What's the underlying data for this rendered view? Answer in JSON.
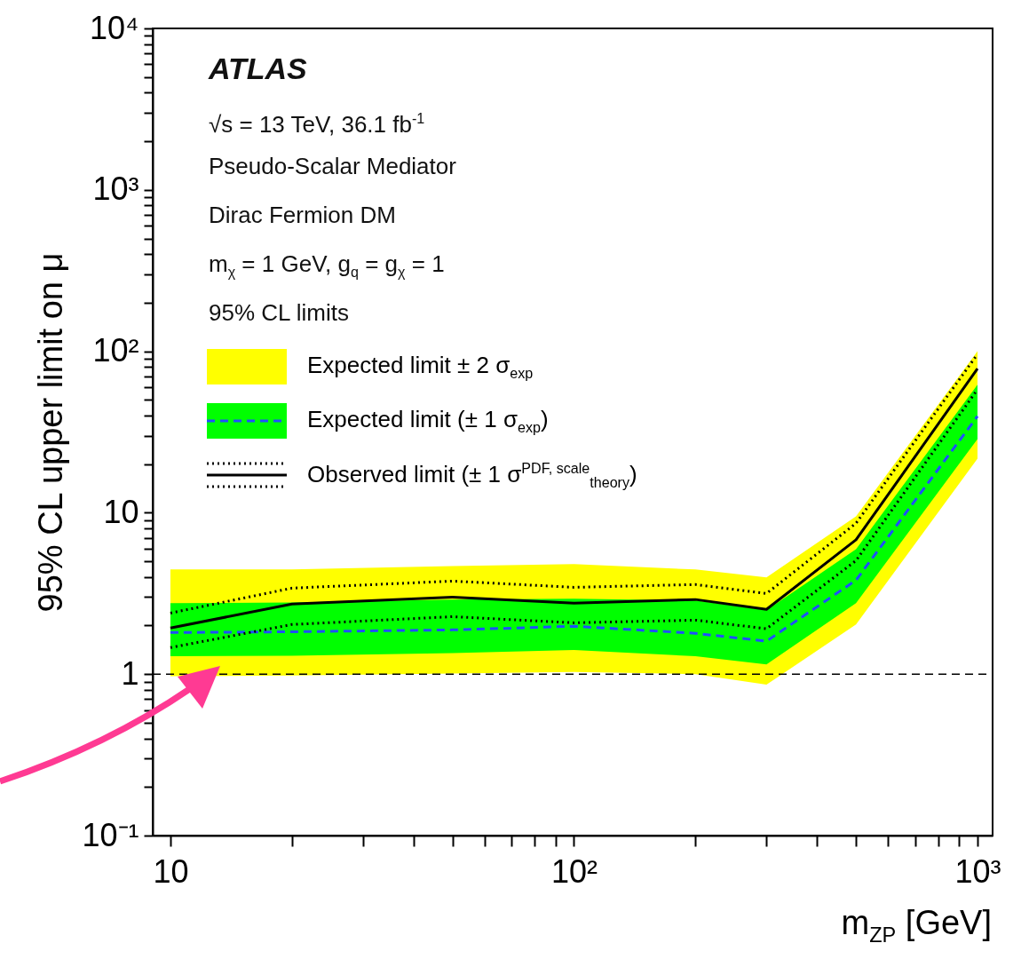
{
  "chart_data": {
    "type": "line",
    "xlabel": "m$_{Z}$$_{P}$ [GeV]",
    "ylabel": "95% CL upper limit on μ",
    "log": "xy",
    "grid": false,
    "legend": "top left",
    "marker": "none",
    "xlim": [
      9.04,
      1090
    ],
    "ylim": [
      0.1,
      10000
    ],
    "xticks": [
      10,
      {
        "value": 20,
        "label": null
      },
      {
        "value": 30,
        "label": null
      },
      {
        "value": 40,
        "label": null
      },
      {
        "value": 50,
        "label": null
      },
      {
        "value": 60,
        "label": null
      },
      {
        "value": 70,
        "label": null
      },
      {
        "value": 80,
        "label": null
      },
      {
        "value": 90,
        "label": null
      },
      {
        "value": 100,
        "label": "10²"
      },
      {
        "value": 200,
        "label": null
      },
      {
        "value": 300,
        "label": null
      },
      {
        "value": 400,
        "label": null
      },
      {
        "value": 500,
        "label": null
      },
      {
        "value": 600,
        "label": null
      },
      {
        "value": 700,
        "label": null
      },
      {
        "value": 800,
        "label": null
      },
      {
        "value": 900,
        "label": null
      },
      {
        "value": 1000,
        "label": "10³"
      }
    ],
    "yticks": [
      {
        "value": 0.1,
        "label": "10⁻¹"
      },
      {
        "value": 0.2,
        "label": null
      },
      {
        "value": 0.3,
        "label": null
      },
      {
        "value": 0.4,
        "label": null
      },
      {
        "value": 0.5,
        "label": null
      },
      {
        "value": 0.6,
        "label": null
      },
      {
        "value": 0.7,
        "label": null
      },
      {
        "value": 0.8,
        "label": null
      },
      {
        "value": 0.9,
        "label": null
      },
      1,
      {
        "value": 2,
        "label": null
      },
      {
        "value": 3,
        "label": null
      },
      {
        "value": 4,
        "label": null
      },
      {
        "value": 5,
        "label": null
      },
      {
        "value": 6,
        "label": null
      },
      {
        "value": 7,
        "label": null
      },
      {
        "value": 8,
        "label": null
      },
      {
        "value": 9,
        "label": null
      },
      10,
      {
        "value": 20,
        "label": null
      },
      {
        "value": 30,
        "label": null
      },
      {
        "value": 40,
        "label": null
      },
      {
        "value": 50,
        "label": null
      },
      {
        "value": 60,
        "label": null
      },
      {
        "value": 70,
        "label": null
      },
      {
        "value": 80,
        "label": null
      },
      {
        "value": 90,
        "label": null
      },
      {
        "value": 100,
        "label": "10²"
      },
      {
        "value": 200,
        "label": null
      },
      {
        "value": 300,
        "label": null
      },
      {
        "value": 400,
        "label": null
      },
      {
        "value": 500,
        "label": null
      },
      {
        "value": 600,
        "label": null
      },
      {
        "value": 700,
        "label": null
      },
      {
        "value": 800,
        "label": null
      },
      {
        "value": 900,
        "label": null
      },
      {
        "value": 1000,
        "label": "10³"
      },
      {
        "value": 2000,
        "label": null
      },
      {
        "value": 3000,
        "label": null
      },
      {
        "value": 4000,
        "label": null
      },
      {
        "value": 5000,
        "label": null
      },
      {
        "value": 6000,
        "label": null
      },
      {
        "value": 7000,
        "label": null
      },
      {
        "value": 8000,
        "label": null
      },
      {
        "value": 9000,
        "label": null
      },
      {
        "value": 10000,
        "label": "10⁴"
      }
    ],
    "x": [
      10,
      20,
      50,
      100,
      200,
      300,
      500,
      1000
    ],
    "series": [
      {
        "name": "Expected limit ± 2 σ$_{exp}$",
        "color": "#ffff00",
        "values": [
          null,
          null,
          null,
          null,
          null,
          null,
          null,
          null
        ],
        "lower": [
          0.97,
          0.98,
          1.01,
          1.03,
          1.0,
          0.86,
          2.03,
          21.6
        ],
        "upper": [
          4.45,
          4.45,
          4.67,
          4.8,
          4.45,
          3.97,
          9.5,
          100
        ]
      },
      {
        "name": "Expected limit (± 1 σ$_{exp}$)",
        "color": "#00ff00",
        "values": [
          null,
          null,
          null,
          null,
          null,
          null,
          null,
          null
        ],
        "lower": [
          1.29,
          1.3,
          1.35,
          1.41,
          1.29,
          1.15,
          2.75,
          28.6
        ],
        "upper": [
          2.75,
          2.78,
          2.9,
          2.93,
          2.86,
          2.49,
          5.95,
          62
        ]
      },
      {
        "color": "#1f4fff",
        "line_style": "dashed",
        "values": [
          1.81,
          1.83,
          1.88,
          1.98,
          1.79,
          1.6,
          3.82,
          39.6
        ]
      },
      {
        "name": "Observed limit (± 1 σ$^{PDF, scale}$$_{theory}$)",
        "color": "#000000",
        "line_style": "solid",
        "values": [
          1.93,
          2.72,
          3.0,
          2.75,
          2.9,
          2.52,
          6.8,
          78
        ]
      },
      {
        "color": "#000000",
        "line_style": "dotted",
        "values": [
          2.39,
          3.41,
          3.77,
          3.45,
          3.59,
          3.16,
          8.6,
          96
        ]
      },
      {
        "color": "#000000",
        "line_style": "dotted",
        "values": [
          1.46,
          2.03,
          2.27,
          2.08,
          2.16,
          1.91,
          5.05,
          58
        ]
      }
    ],
    "ref_lines": [
      {
        "axis": "y",
        "value": 1,
        "label": null,
        "color": "#000000",
        "line_style": "dashed"
      }
    ],
    "annotations": [
      "ATLAS",
      "√s = 13 TeV, 36.1 fb$^{-1}$",
      "Pseudo-Scalar Mediator",
      "Dirac Fermion DM",
      "m$_{χ}$ = 1 GeV, g$_{q}$ = g$_{χ}$ = 1",
      "95% CL limits"
    ]
  }
}
